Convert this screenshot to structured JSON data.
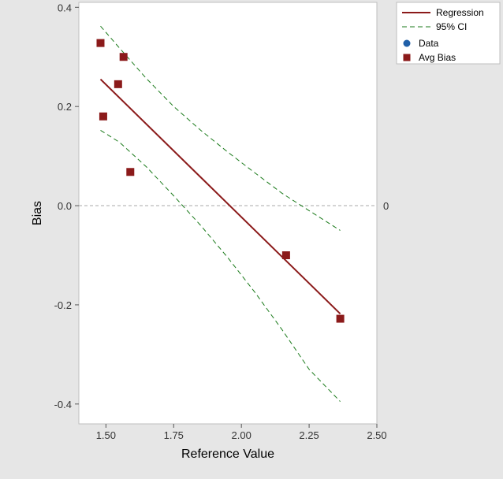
{
  "chart_data": {
    "type": "scatter",
    "xlabel": "Reference Value",
    "ylabel": "Bias",
    "xlim": [
      1.4,
      2.5
    ],
    "ylim": [
      -0.44,
      0.41
    ],
    "x_ticks": [
      1.5,
      1.75,
      2.0,
      2.25,
      2.5
    ],
    "x_tick_labels": [
      "1.50",
      "1.75",
      "2.00",
      "2.25",
      "2.50"
    ],
    "y_ticks": [
      0.4,
      0.2,
      0.0,
      -0.2,
      -0.4
    ],
    "y_tick_labels": [
      "0.4",
      "0.2",
      "0.0",
      "-0.2",
      "-0.4"
    ],
    "reference_line": {
      "y": 0,
      "label": "0",
      "color": "#aaaaaa",
      "style": "dashed"
    },
    "grid": false,
    "legend_position": "top-right outside",
    "legend": [
      {
        "label": "Regression",
        "kind": "solid-line",
        "color": "#8b1a1a"
      },
      {
        "label": "95% CI",
        "kind": "dashed-line",
        "color": "#1a7a1a"
      },
      {
        "label": "Data",
        "kind": "circle",
        "color": "#1f5fa8"
      },
      {
        "label": "Avg Bias",
        "kind": "square",
        "color": "#8b1a1a"
      }
    ],
    "series": [
      {
        "name": "Avg Bias",
        "kind": "scatter",
        "marker": "square",
        "color": "#8b1a1a",
        "x": [
          1.48,
          1.49,
          1.545,
          1.565,
          1.59,
          2.165,
          2.365
        ],
        "y": [
          0.328,
          0.18,
          0.245,
          0.3,
          0.068,
          -0.1,
          -0.228
        ]
      },
      {
        "name": "Regression",
        "kind": "line",
        "style": "solid",
        "color": "#8b1a1a",
        "x": [
          1.48,
          2.365
        ],
        "y": [
          0.255,
          -0.218
        ]
      },
      {
        "name": "95% CI",
        "kind": "line",
        "style": "dashed",
        "color": "#1a7a1a",
        "x": [
          1.48,
          1.55,
          1.65,
          1.75,
          1.85,
          1.95,
          2.05,
          2.15,
          2.25,
          2.365
        ],
        "y": [
          0.362,
          0.318,
          0.256,
          0.2,
          0.152,
          0.108,
          0.066,
          0.025,
          -0.01,
          -0.05
        ]
      },
      {
        "name": "95% CI",
        "kind": "line",
        "style": "dashed",
        "color": "#1a7a1a",
        "x": [
          1.48,
          1.55,
          1.65,
          1.75,
          1.85,
          1.95,
          2.05,
          2.15,
          2.25,
          2.365
        ],
        "y": [
          0.152,
          0.128,
          0.078,
          0.02,
          -0.04,
          -0.105,
          -0.175,
          -0.25,
          -0.33,
          -0.395
        ]
      }
    ]
  }
}
